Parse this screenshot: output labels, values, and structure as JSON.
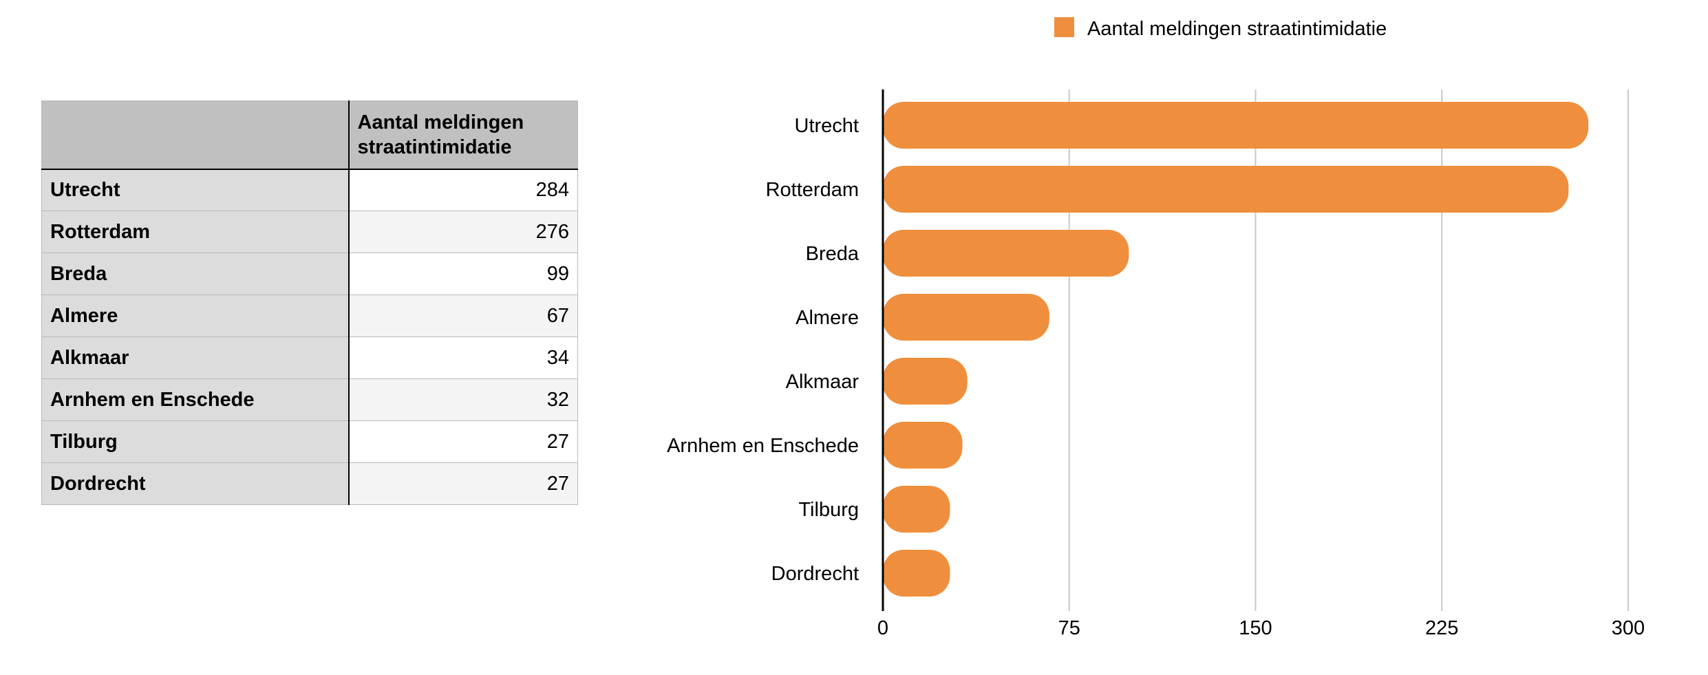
{
  "table": {
    "header": "Aantal meldingen\nstraatintimidatie",
    "header_lines": [
      "Aantal meldingen",
      "straatintimidatie"
    ],
    "rows": [
      {
        "label": "Utrecht",
        "value": "284"
      },
      {
        "label": "Rotterdam",
        "value": "276"
      },
      {
        "label": "Breda",
        "value": "99"
      },
      {
        "label": "Almere",
        "value": "67"
      },
      {
        "label": "Alkmaar",
        "value": "34"
      },
      {
        "label": "Arnhem en Enschede",
        "value": "32"
      },
      {
        "label": "Tilburg",
        "value": "27"
      },
      {
        "label": "Dordrecht",
        "value": "27"
      }
    ]
  },
  "chart_data": {
    "type": "bar",
    "orientation": "horizontal",
    "categories": [
      "Utrecht",
      "Rotterdam",
      "Breda",
      "Almere",
      "Alkmaar",
      "Arnhem en Enschede",
      "Tilburg",
      "Dordrecht"
    ],
    "series": [
      {
        "name": "Aantal meldingen straatintimidatie",
        "values": [
          284,
          276,
          99,
          67,
          34,
          32,
          27,
          27
        ],
        "color": "#ef8f3e"
      }
    ],
    "title": "",
    "xlabel": "",
    "ylabel": "",
    "xlim": [
      0,
      300
    ],
    "xticks": [
      "0",
      "75",
      "150",
      "225",
      "300"
    ],
    "grid": "vertical",
    "legend": "top-center",
    "gridline_color": "#c8c8c8",
    "axis_color": "#000000"
  }
}
